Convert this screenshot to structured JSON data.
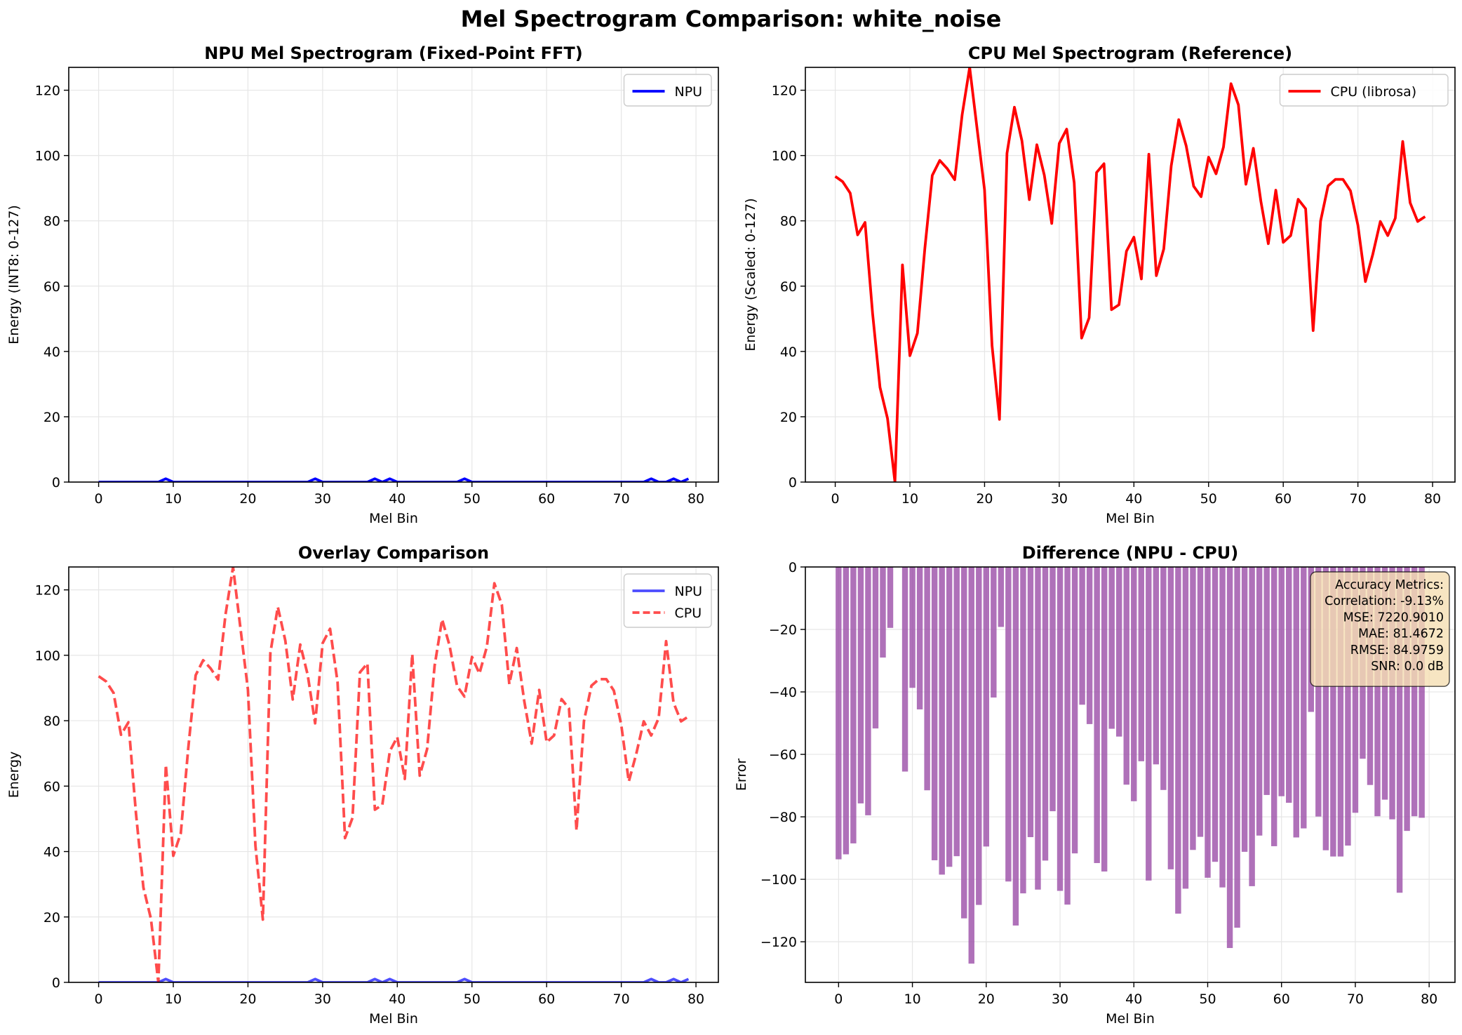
{
  "suptitle": "Mel Spectrogram Comparison: white_noise",
  "colors": {
    "npu": "#0000ff",
    "cpu": "#ff0000",
    "bar": "#9b4da8",
    "grid": "#e6e6e6"
  },
  "metrics": {
    "title": "Accuracy Metrics:",
    "lines": [
      "Correlation: -9.13%",
      "MSE: 7220.9010",
      "MAE: 81.4672",
      "RMSE: 84.9759",
      "SNR: 0.0 dB"
    ]
  },
  "chart_data": [
    {
      "type": "line",
      "title": "NPU Mel Spectrogram (Fixed-Point FFT)",
      "xlabel": "Mel Bin",
      "ylabel": "Energy (INT8: 0-127)",
      "xlim": [
        -4,
        83
      ],
      "ylim": [
        0,
        127
      ],
      "xticks": [
        0,
        10,
        20,
        30,
        40,
        50,
        60,
        70,
        80
      ],
      "yticks": [
        0,
        20,
        40,
        60,
        80,
        100,
        120
      ],
      "grid": true,
      "legend": "top-right",
      "series": [
        {
          "name": "NPU",
          "ref": "npu",
          "color": "#0000ff",
          "style": "solid"
        }
      ]
    },
    {
      "type": "line",
      "title": "CPU Mel Spectrogram (Reference)",
      "xlabel": "Mel Bin",
      "ylabel": "Energy (Scaled: 0-127)",
      "xlim": [
        -4,
        83
      ],
      "ylim": [
        0,
        127
      ],
      "xticks": [
        0,
        10,
        20,
        30,
        40,
        50,
        60,
        70,
        80
      ],
      "yticks": [
        0,
        20,
        40,
        60,
        80,
        100,
        120
      ],
      "grid": true,
      "legend": "top-right",
      "series": [
        {
          "name": "CPU (librosa)",
          "ref": "cpu",
          "color": "#ff0000",
          "style": "solid"
        }
      ]
    },
    {
      "type": "line",
      "title": "Overlay Comparison",
      "xlabel": "Mel Bin",
      "ylabel": "Energy",
      "xlim": [
        -4,
        83
      ],
      "ylim": [
        0,
        127
      ],
      "xticks": [
        0,
        10,
        20,
        30,
        40,
        50,
        60,
        70,
        80
      ],
      "yticks": [
        0,
        20,
        40,
        60,
        80,
        100,
        120
      ],
      "grid": true,
      "legend": "top-right",
      "series": [
        {
          "name": "NPU",
          "ref": "npu",
          "color": "#0000ff",
          "style": "solid",
          "alpha": 0.7
        },
        {
          "name": "CPU",
          "ref": "cpu",
          "color": "#ff0000",
          "style": "dashed",
          "alpha": 0.7
        }
      ]
    },
    {
      "type": "bar",
      "title": "Difference (NPU - CPU)",
      "xlabel": "Mel Bin",
      "ylabel": "Error",
      "xlim": [
        -4.5,
        83.5
      ],
      "ylim": [
        -133,
        0
      ],
      "xticks": [
        0,
        10,
        20,
        30,
        40,
        50,
        60,
        70,
        80
      ],
      "yticks": [
        0,
        -20,
        -40,
        -60,
        -80,
        -100,
        -120
      ],
      "grid": true,
      "series": [
        {
          "name": "",
          "ref": "diff",
          "color": "#9b4da8"
        }
      ]
    }
  ],
  "values": {
    "x": [
      0,
      1,
      2,
      3,
      4,
      5,
      6,
      7,
      8,
      9,
      10,
      11,
      12,
      13,
      14,
      15,
      16,
      17,
      18,
      19,
      20,
      21,
      22,
      23,
      24,
      25,
      26,
      27,
      28,
      29,
      30,
      31,
      32,
      33,
      34,
      35,
      36,
      37,
      38,
      39,
      40,
      41,
      42,
      43,
      44,
      45,
      46,
      47,
      48,
      49,
      50,
      51,
      52,
      53,
      54,
      55,
      56,
      57,
      58,
      59,
      60,
      61,
      62,
      63,
      64,
      65,
      66,
      67,
      68,
      69,
      70,
      71,
      72,
      73,
      74,
      75,
      76,
      77,
      78,
      79
    ],
    "npu": [
      0,
      0,
      0,
      0,
      0,
      0,
      0,
      0,
      0,
      1,
      0,
      0,
      0,
      0,
      0,
      0,
      0,
      0,
      0,
      0,
      0,
      0,
      0,
      0,
      0,
      0,
      0,
      0,
      0,
      1,
      0,
      0,
      0,
      0,
      0,
      0,
      0,
      1,
      0,
      1,
      0,
      0,
      0,
      0,
      0,
      0,
      0,
      0,
      0,
      1,
      0,
      0,
      0,
      0,
      0,
      0,
      0,
      0,
      0,
      0,
      0,
      0,
      0,
      0,
      0,
      0,
      0,
      0,
      0,
      0,
      0,
      0,
      0,
      0,
      1,
      0,
      0,
      1,
      0,
      1
    ],
    "cpu": [
      93.6,
      92,
      88.5,
      75.7,
      79.5,
      51.7,
      29,
      19.5,
      0,
      66.5,
      38.7,
      45.6,
      71.5,
      93.9,
      98.5,
      96,
      92.6,
      112.5,
      127,
      108.2,
      89.5,
      41.8,
      19.2,
      100.7,
      114.8,
      104.5,
      86.5,
      103.3,
      94,
      79.2,
      103.7,
      108.1,
      91.7,
      44.1,
      50.3,
      94.8,
      97.5,
      52.8,
      54.3,
      70.7,
      75,
      62.2,
      100.4,
      63.2,
      71.4,
      96.8,
      111,
      103,
      90.6,
      87.4,
      99.5,
      94.4,
      102.6,
      122,
      115.5,
      91.2,
      102.2,
      86,
      73,
      89.4,
      73.4,
      75.5,
      86.6,
      83.7,
      46.4,
      79.9,
      90.7,
      92.7,
      92.7,
      89.2,
      78.7,
      61.4,
      69.8,
      79.8,
      75.5,
      80.8,
      104.3,
      85.5,
      79.8,
      81.3
    ],
    "diff": [
      -93.6,
      -92,
      -88.5,
      -75.7,
      -79.5,
      -51.7,
      -29,
      -19.5,
      0,
      -65.5,
      -38.7,
      -45.6,
      -71.5,
      -93.9,
      -98.5,
      -96,
      -92.6,
      -112.5,
      -127,
      -108.2,
      -89.5,
      -41.8,
      -19.2,
      -100.7,
      -114.8,
      -104.5,
      -86.5,
      -103.3,
      -94,
      -78.2,
      -103.7,
      -108.1,
      -91.7,
      -44.1,
      -50.3,
      -94.8,
      -97.5,
      -51.8,
      -54.3,
      -69.7,
      -75,
      -62.2,
      -100.4,
      -63.2,
      -71.4,
      -96.8,
      -111,
      -103,
      -90.6,
      -86.4,
      -99.5,
      -94.4,
      -102.6,
      -122,
      -115.5,
      -91.2,
      -102.2,
      -86,
      -73,
      -89.4,
      -73.4,
      -75.5,
      -86.6,
      -83.7,
      -46.4,
      -79.9,
      -90.7,
      -92.7,
      -92.7,
      -89.2,
      -78.7,
      -61.4,
      -69.8,
      -79.8,
      -74.5,
      -80.8,
      -104.3,
      -84.5,
      -79.8,
      -80.3
    ]
  }
}
